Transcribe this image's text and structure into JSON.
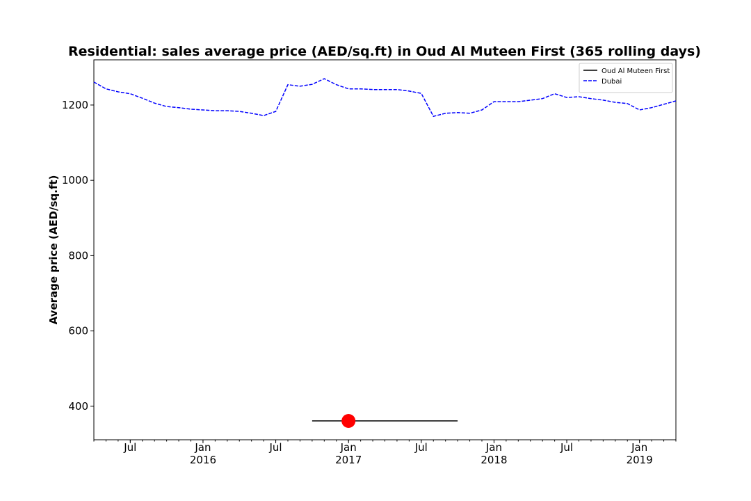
{
  "chart_data": {
    "type": "line",
    "title": "Residential: sales average price (AED/sq.ft) in Oud Al Muteen First (365 rolling days)",
    "y_label": "Average price (AED/sq.ft)",
    "xlim": [
      "2015-04",
      "2019-04"
    ],
    "ylim": [
      311,
      1320
    ],
    "yticks": [
      400,
      600,
      800,
      1000,
      1200
    ],
    "xticks": [
      {
        "value": "2015-07",
        "label": "Jul"
      },
      {
        "value": "2016-01",
        "label": "Jan\n2016"
      },
      {
        "value": "2016-07",
        "label": "Jul"
      },
      {
        "value": "2017-01",
        "label": "Jan\n2017"
      },
      {
        "value": "2017-07",
        "label": "Jul"
      },
      {
        "value": "2018-01",
        "label": "Jan\n2018"
      },
      {
        "value": "2018-07",
        "label": "Jul"
      },
      {
        "value": "2019-01",
        "label": "Jan\n2019"
      }
    ],
    "legend": "upper right",
    "series": [
      {
        "name": "Oud Al Muteen First",
        "color": "#000000",
        "dash": false,
        "x": [
          "2016-10",
          "2017-10"
        ],
        "values": [
          361,
          361
        ]
      },
      {
        "name": "Dubai",
        "color": "#0000ff",
        "dash": true,
        "x": [
          "2015-04",
          "2015-05",
          "2015-06",
          "2015-07",
          "2015-08",
          "2015-09",
          "2015-10",
          "2015-11",
          "2015-12",
          "2016-01",
          "2016-02",
          "2016-03",
          "2016-04",
          "2016-05",
          "2016-06",
          "2016-07",
          "2016-08",
          "2016-09",
          "2016-10",
          "2016-11",
          "2016-12",
          "2017-01",
          "2017-02",
          "2017-03",
          "2017-04",
          "2017-05",
          "2017-06",
          "2017-07",
          "2017-08",
          "2017-09",
          "2017-10",
          "2017-11",
          "2017-12",
          "2018-01",
          "2018-02",
          "2018-03",
          "2018-04",
          "2018-05",
          "2018-06",
          "2018-07",
          "2018-08",
          "2018-09",
          "2018-10",
          "2018-11",
          "2018-12",
          "2019-01",
          "2019-02",
          "2019-03",
          "2019-04"
        ],
        "values": [
          1261,
          1243,
          1235,
          1230,
          1218,
          1205,
          1196,
          1193,
          1189,
          1187,
          1185,
          1185,
          1183,
          1178,
          1172,
          1183,
          1254,
          1250,
          1255,
          1270,
          1254,
          1243,
          1243,
          1241,
          1241,
          1241,
          1237,
          1231,
          1170,
          1178,
          1180,
          1178,
          1187,
          1209,
          1209,
          1209,
          1213,
          1217,
          1230,
          1220,
          1222,
          1217,
          1213,
          1207,
          1204,
          1187,
          1193,
          1202,
          1211
        ]
      }
    ],
    "highlight": {
      "x": "2017-01",
      "value": 361,
      "color": "#ff0000"
    }
  }
}
